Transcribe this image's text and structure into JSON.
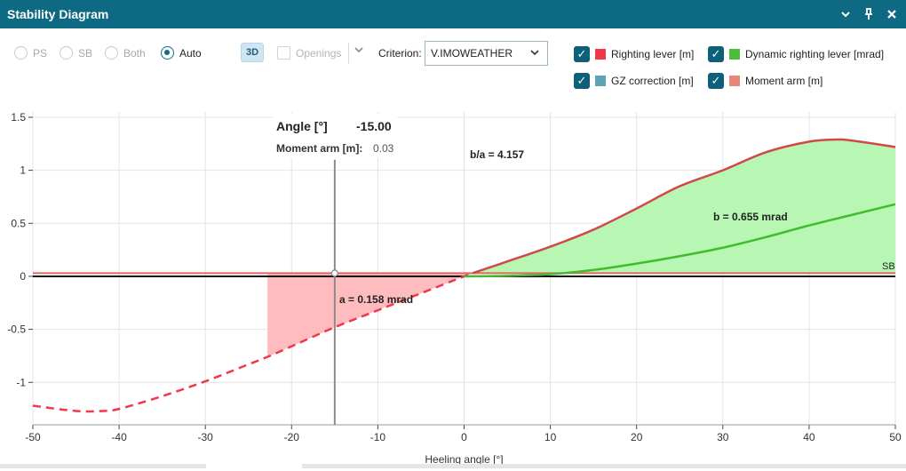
{
  "window": {
    "title": "Stability Diagram",
    "icons": [
      "chevron-down-icon",
      "pin-icon",
      "close-icon"
    ]
  },
  "toolbar": {
    "radios": [
      {
        "label": "PS",
        "checked": false
      },
      {
        "label": "SB",
        "checked": false
      },
      {
        "label": "Both",
        "checked": false
      },
      {
        "label": "Auto",
        "checked": true
      }
    ],
    "view3d_label": "3D",
    "openings_label": "Openings",
    "criterion_label": "Criterion:",
    "criterion_value": "V.IMOWEATHER"
  },
  "legend": [
    {
      "label": "Righting lever [m]",
      "color": "#f0384a",
      "checked": true
    },
    {
      "label": "Dynamic righting lever [mrad]",
      "color": "#4cbf3a",
      "checked": true
    },
    {
      "label": "GZ correction [m]",
      "color": "#5ba3b5",
      "checked": true
    },
    {
      "label": "Moment arm [m]",
      "color": "#e8867a",
      "checked": true
    }
  ],
  "tooltip": {
    "angle_label": "Angle [°]",
    "angle_value": "-15.00",
    "moment_label": "Moment arm [m]:",
    "moment_value": "0.03"
  },
  "annotations": {
    "ratio": "b/a = 4.157",
    "area_b": "b = 0.655 mrad",
    "area_a": "a = 0.158 mrad",
    "sb": "SB"
  },
  "chart_data": {
    "type": "line",
    "title": "",
    "xlabel": "Heeling angle [°]",
    "ylabel": "",
    "xlim": [
      -50,
      50
    ],
    "ylim": [
      -1.4,
      1.55
    ],
    "x_ticks": [
      -50,
      -40,
      -30,
      -20,
      -10,
      0,
      10,
      20,
      30,
      40,
      50
    ],
    "y_ticks": [
      1.5,
      1,
      0.5,
      0,
      -0.5,
      -1
    ],
    "y_tick_labels": [
      "1.5",
      "1",
      "0.5",
      "0",
      "-0.5",
      "-1"
    ],
    "grid": true,
    "cursor_x": -15,
    "moment_arm_value": 0.03,
    "area_a_from": -22.8,
    "series": [
      {
        "name": "Righting lever [m]",
        "color": "#f0384a",
        "x": [
          -50,
          -45,
          -42,
          -40,
          -35,
          -30,
          -25,
          -22.8,
          -20,
          -15,
          -10,
          -5,
          0,
          1
        ],
        "y": [
          -1.22,
          -1.27,
          -1.27,
          -1.25,
          -1.13,
          -0.99,
          -0.83,
          -0.76,
          -0.66,
          -0.48,
          -0.32,
          -0.16,
          0.0,
          0.03
        ]
      },
      {
        "name": "Righting lever [m]",
        "color": "#d14848",
        "x": [
          1,
          5,
          10,
          15,
          20,
          25,
          30,
          35,
          40,
          43,
          45,
          50
        ],
        "y": [
          0.03,
          0.14,
          0.28,
          0.44,
          0.64,
          0.85,
          1.0,
          1.17,
          1.27,
          1.29,
          1.28,
          1.22
        ]
      },
      {
        "name": "Dynamic righting lever [mrad]",
        "color": "#43bb2f",
        "x": [
          0,
          5,
          10,
          15,
          20,
          25,
          30,
          35,
          40,
          45,
          50
        ],
        "y": [
          0.0,
          0.005,
          0.02,
          0.06,
          0.12,
          0.19,
          0.27,
          0.37,
          0.48,
          0.58,
          0.68
        ]
      }
    ]
  }
}
